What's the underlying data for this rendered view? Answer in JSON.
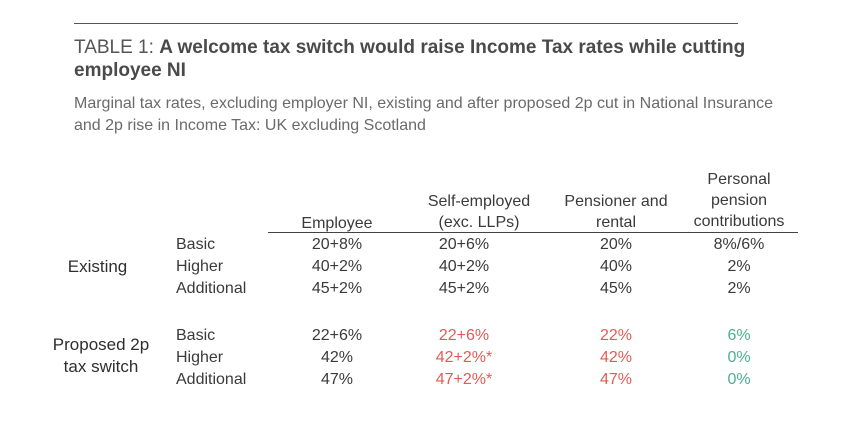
{
  "title": {
    "prefix": "TABLE 1: ",
    "main": "A welcome tax switch would raise Income Tax rates while cutting employee NI"
  },
  "subtitle": "Marginal tax rates, excluding employer NI, existing and after proposed 2p cut in National Insurance and 2p rise in Income Tax: UK excluding Scotland",
  "columns": {
    "employee": "Employee",
    "self_employed_1": "Self-employed",
    "self_employed_2": "(exc. LLPs)",
    "pensioner_1": "Pensioner and",
    "pensioner_2": "rental",
    "pension_1": "Personal",
    "pension_2": "pension",
    "pension_3": "contributions"
  },
  "groups": {
    "existing": {
      "label": "Existing",
      "rows": [
        {
          "label": "Basic",
          "employee": "20+8%",
          "self_employed": "20+6%",
          "pensioner": "20%",
          "pension": "8%/6%"
        },
        {
          "label": "Higher",
          "employee": "40+2%",
          "self_employed": "40+2%",
          "pensioner": "40%",
          "pension": "2%"
        },
        {
          "label": "Additional",
          "employee": "45+2%",
          "self_employed": "45+2%",
          "pensioner": "45%",
          "pension": "2%"
        }
      ]
    },
    "proposed": {
      "label_1": "Proposed 2p",
      "label_2": "tax switch",
      "rows": [
        {
          "label": "Basic",
          "employee": "22+6%",
          "self_employed": "22+6%",
          "pensioner": "22%",
          "pension": "6%"
        },
        {
          "label": "Higher",
          "employee": "42%",
          "self_employed": "42+2%*",
          "pensioner": "42%",
          "pension": "0%"
        },
        {
          "label": "Additional",
          "employee": "47%",
          "self_employed": "47+2%*",
          "pensioner": "47%",
          "pension": "0%"
        }
      ]
    }
  },
  "colors": {
    "increase": "#e05c55",
    "decrease": "#4bb08e",
    "text": "#3a3a3a"
  }
}
